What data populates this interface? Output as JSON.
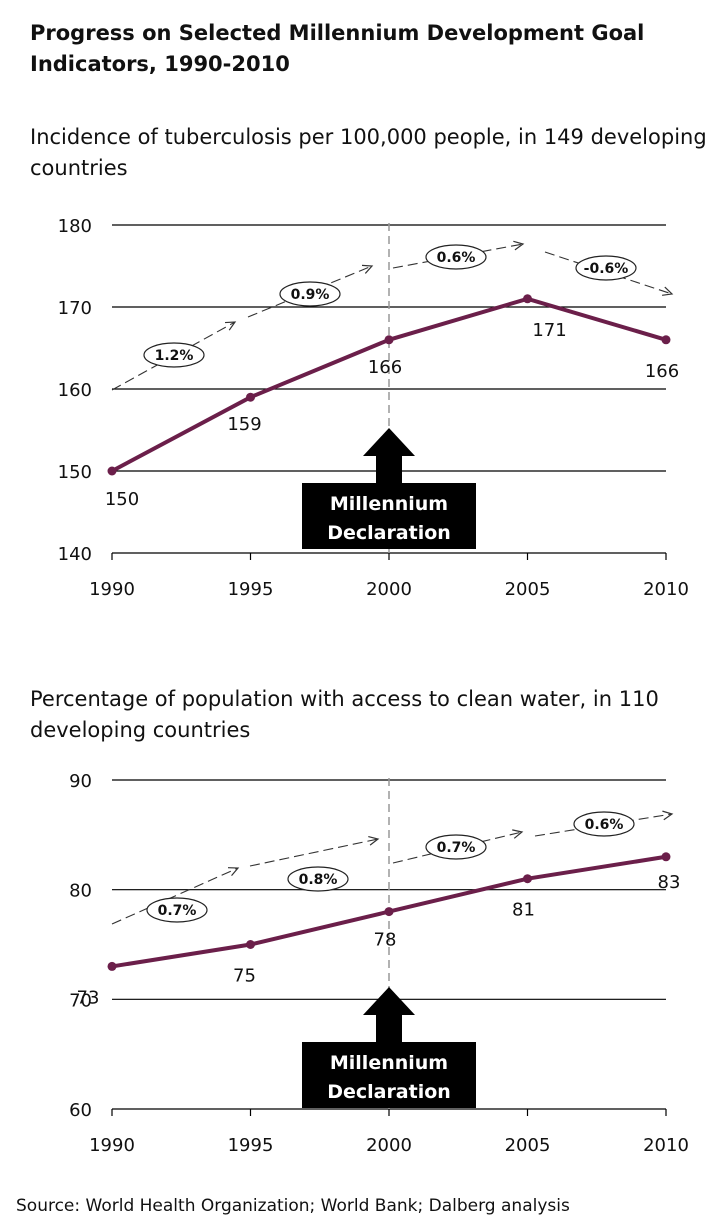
{
  "title": "Progress on Selected Millennium Development Goal Indicators, 1990-2010",
  "source": "Source: World Health Organization; World Bank; Dalberg  analysis",
  "chart_data": [
    {
      "type": "line",
      "title": "Incidence of tuberculosis per 100,000 people, in 149 developing countries",
      "x": [
        1990,
        1995,
        2000,
        2005,
        2010
      ],
      "values": [
        150,
        159,
        166,
        171,
        166
      ],
      "data_labels": [
        "150",
        "159",
        "166",
        "171",
        "166"
      ],
      "xticks": [
        "1990",
        "1995",
        "2000",
        "2005",
        "2010"
      ],
      "yticks": [
        "140",
        "150",
        "160",
        "170",
        "180"
      ],
      "ylim": [
        140,
        180
      ],
      "grid": true,
      "line_color": "#6b1f4a",
      "rate_labels": [
        "1.2%",
        "0.9%",
        "0.6%",
        "-0.6%"
      ],
      "annotation": [
        "Millennium",
        "Declaration"
      ],
      "annotation_x": 2000
    },
    {
      "type": "line",
      "title": "Percentage of population with access to clean water, in 110 developing countries",
      "x": [
        1990,
        1995,
        2000,
        2005,
        2010
      ],
      "values": [
        73,
        75,
        78,
        81,
        83
      ],
      "data_labels": [
        "73",
        "75",
        "78",
        "81",
        "83"
      ],
      "xticks": [
        "1990",
        "1995",
        "2000",
        "2005",
        "2010"
      ],
      "yticks": [
        "60",
        "70",
        "80",
        "90"
      ],
      "ylim": [
        60,
        90
      ],
      "grid": true,
      "line_color": "#6b1f4a",
      "rate_labels": [
        "0.7%",
        "0.8%",
        "0.7%",
        "0.6%"
      ],
      "annotation": [
        "Millennium",
        "Declaration"
      ],
      "annotation_x": 2000
    }
  ]
}
